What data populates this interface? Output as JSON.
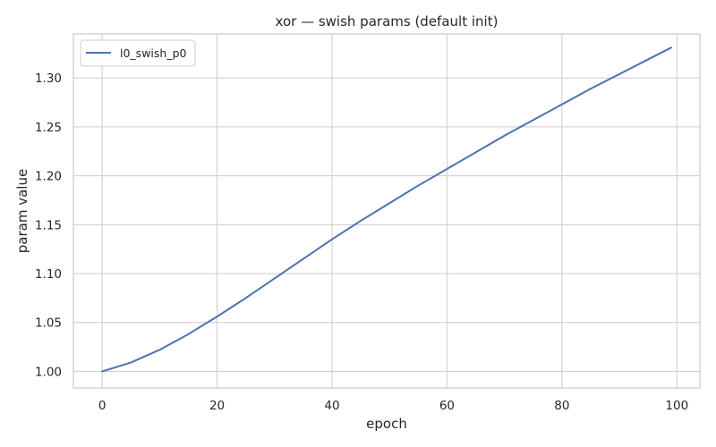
{
  "chart_data": {
    "type": "line",
    "title": "xor — swish params (default init)",
    "xlabel": "epoch",
    "ylabel": "param value",
    "xlim": [
      -5,
      104
    ],
    "ylim": [
      0.983,
      1.345
    ],
    "x_ticks": [
      0,
      20,
      40,
      60,
      80,
      100
    ],
    "y_ticks": [
      1.0,
      1.05,
      1.1,
      1.15,
      1.2,
      1.25,
      1.3
    ],
    "y_tick_labels": [
      "1.00",
      "1.05",
      "1.10",
      "1.15",
      "1.20",
      "1.25",
      "1.30"
    ],
    "grid": true,
    "legend_position": "top-left",
    "series": [
      {
        "name": "l0_swish_p0",
        "color": "#4c72b0",
        "x": [
          0,
          5,
          10,
          15,
          20,
          25,
          30,
          35,
          40,
          45,
          50,
          55,
          60,
          65,
          70,
          75,
          80,
          85,
          90,
          95,
          99
        ],
        "y": [
          1.0,
          1.009,
          1.022,
          1.038,
          1.056,
          1.075,
          1.095,
          1.115,
          1.135,
          1.154,
          1.172,
          1.19,
          1.207,
          1.224,
          1.241,
          1.257,
          1.273,
          1.289,
          1.304,
          1.319,
          1.331
        ]
      }
    ]
  }
}
